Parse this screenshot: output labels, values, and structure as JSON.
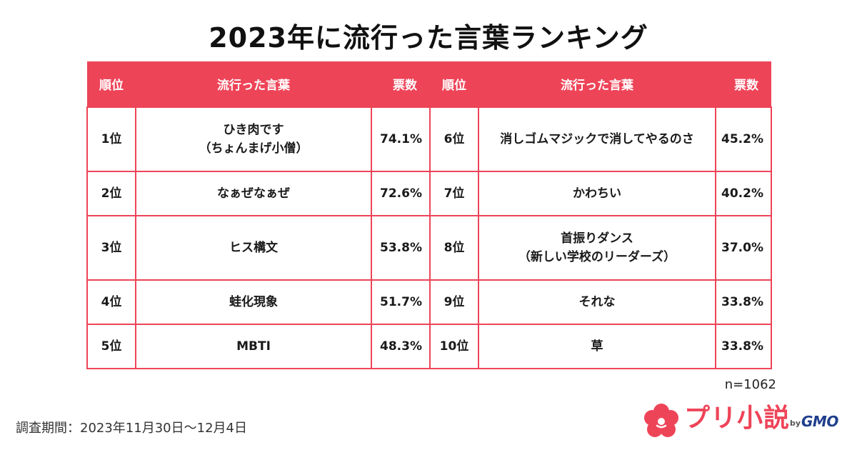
{
  "title": "2023年に流行った言葉ランキング",
  "table": {
    "headers": {
      "rank": "順位",
      "word": "流行った言葉",
      "votes": "票数"
    },
    "rows": [
      {
        "left": {
          "rank": "1位",
          "word_line1": "ひき肉です",
          "word_line2": "（ちょんまげ小僧）",
          "pct": "74.1%"
        },
        "right": {
          "rank": "6位",
          "word_line1": "消しゴムマジックで消してやるのさ",
          "word_line2": "",
          "pct": "45.2%"
        }
      },
      {
        "left": {
          "rank": "2位",
          "word_line1": "なぁぜなぁぜ",
          "word_line2": "",
          "pct": "72.6%"
        },
        "right": {
          "rank": "7位",
          "word_line1": "かわちい",
          "word_line2": "",
          "pct": "40.2%"
        }
      },
      {
        "left": {
          "rank": "3位",
          "word_line1": "ヒス構文",
          "word_line2": "",
          "pct": "53.8%"
        },
        "right": {
          "rank": "8位",
          "word_line1": "首振りダンス",
          "word_line2": "（新しい学校のリーダーズ）",
          "pct": "37.0%"
        }
      },
      {
        "left": {
          "rank": "4位",
          "word_line1": "蛙化現象",
          "word_line2": "",
          "pct": "51.7%"
        },
        "right": {
          "rank": "9位",
          "word_line1": "それな",
          "word_line2": "",
          "pct": "33.8%"
        }
      },
      {
        "left": {
          "rank": "5位",
          "word_line1": "MBTI",
          "word_line2": "",
          "pct": "48.3%"
        },
        "right": {
          "rank": "10位",
          "word_line1": "草",
          "word_line2": "",
          "pct": "33.8%"
        }
      }
    ]
  },
  "sample_size": "n=1062",
  "survey_period": "調査期間：2023年11月30日〜12月4日",
  "logo": {
    "brand": "プリ小説",
    "by": "by",
    "company": "GMO"
  },
  "colors": {
    "accent": "#ee4458",
    "gmo_blue": "#1f3e8c"
  }
}
